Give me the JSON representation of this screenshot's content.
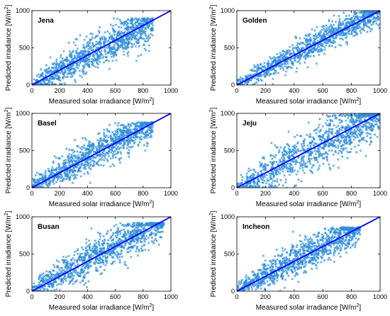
{
  "colors": {
    "scatter": "#2e8ed8",
    "fit_line": "#0000ff",
    "axes": "#000000"
  },
  "chart_data": [
    {
      "type": "scatter",
      "title": "Jena",
      "xlabel": "Measured solar irradiance [W/m",
      "xlabel_sup": "2",
      "xlabel_suffix": "]",
      "ylabel": "Predicted irradiance [W/m",
      "ylabel_sup": "2",
      "ylabel_suffix": "]",
      "xlim": [
        0,
        1000
      ],
      "ylim": [
        0,
        1000
      ],
      "xticks": [
        "0",
        "200",
        "400",
        "600",
        "800",
        "1000"
      ],
      "yticks": [
        "0",
        "500",
        "1000"
      ],
      "reference_line": {
        "from": [
          0,
          0
        ],
        "to": [
          1000,
          1000
        ]
      },
      "point_cloud": {
        "x_max": 870,
        "y_max": 900,
        "spread": 120,
        "bias": -10
      }
    },
    {
      "type": "scatter",
      "title": "Golden",
      "xlabel": "Measured solar irradiance [W/m",
      "xlabel_sup": "2",
      "xlabel_suffix": "]",
      "ylabel": "Predicted irradiance [W/m",
      "ylabel_sup": "2",
      "ylabel_suffix": "]",
      "xlim": [
        0,
        1000
      ],
      "ylim": [
        0,
        1000
      ],
      "xticks": [
        "0",
        "200",
        "400",
        "600",
        "800",
        "1000"
      ],
      "yticks": [
        "0",
        "500",
        "1000"
      ],
      "reference_line": {
        "from": [
          0,
          0
        ],
        "to": [
          1000,
          1000
        ]
      },
      "point_cloud": {
        "x_max": 1000,
        "y_max": 1000,
        "spread": 85,
        "bias": 10
      }
    },
    {
      "type": "scatter",
      "title": "Basel",
      "xlabel": "Measured solar irradiance [W/m",
      "xlabel_sup": "2",
      "xlabel_suffix": "]",
      "ylabel": "Predicted irradiance [W/m",
      "ylabel_sup": "2",
      "ylabel_suffix": "]",
      "xlim": [
        0,
        1000
      ],
      "ylim": [
        0,
        1000
      ],
      "xticks": [
        "0",
        "200",
        "400",
        "600",
        "800",
        "1000"
      ],
      "yticks": [
        "0",
        "500",
        "1000"
      ],
      "reference_line": {
        "from": [
          0,
          0
        ],
        "to": [
          1000,
          1000
        ]
      },
      "point_cloud": {
        "x_max": 870,
        "y_max": 880,
        "spread": 110,
        "bias": 15
      }
    },
    {
      "type": "scatter",
      "title": "Jeju",
      "xlabel": "Measured solar irradiance [W/m",
      "xlabel_sup": "2",
      "xlabel_suffix": "]",
      "ylabel": "Predicted irradiance [W/m",
      "ylabel_sup": "2",
      "ylabel_suffix": "]",
      "xlim": [
        0,
        1000
      ],
      "ylim": [
        0,
        1000
      ],
      "xticks": [
        "0",
        "200",
        "400",
        "600",
        "800",
        "1000"
      ],
      "yticks": [
        "0",
        "500",
        "1000"
      ],
      "reference_line": {
        "from": [
          0,
          0
        ],
        "to": [
          1000,
          1000
        ]
      },
      "point_cloud": {
        "x_max": 1000,
        "y_max": 1000,
        "spread": 160,
        "bias": 0
      }
    },
    {
      "type": "scatter",
      "title": "Busan",
      "xlabel": "Measured solar irradiance [W/m",
      "xlabel_sup": "2",
      "xlabel_suffix": "]",
      "ylabel": "Predicted irradiance [W/m",
      "ylabel_sup": "2",
      "ylabel_suffix": "]",
      "xlim": [
        0,
        1000
      ],
      "ylim": [
        0,
        1000
      ],
      "xticks": [
        "0",
        "200",
        "400",
        "600",
        "800",
        "1000"
      ],
      "yticks": [
        "0",
        "500",
        "1000"
      ],
      "reference_line": {
        "from": [
          0,
          0
        ],
        "to": [
          1000,
          1000
        ]
      },
      "point_cloud": {
        "x_max": 950,
        "y_max": 920,
        "spread": 120,
        "bias": 20
      }
    },
    {
      "type": "scatter",
      "title": "Incheon",
      "xlabel": "Measured solar irradiance [W/m",
      "xlabel_sup": "2",
      "xlabel_suffix": "]",
      "ylabel": "Predicted irradiance [W/m",
      "ylabel_sup": "2",
      "ylabel_suffix": "]",
      "xlim": [
        0,
        1000
      ],
      "ylim": [
        0,
        1000
      ],
      "xticks": [
        "0",
        "200",
        "400",
        "600",
        "800",
        "1000"
      ],
      "yticks": [
        "0",
        "500",
        "1000"
      ],
      "reference_line": {
        "from": [
          0,
          0
        ],
        "to": [
          1000,
          1000
        ]
      },
      "point_cloud": {
        "x_max": 860,
        "y_max": 860,
        "spread": 110,
        "bias": 15
      }
    }
  ]
}
